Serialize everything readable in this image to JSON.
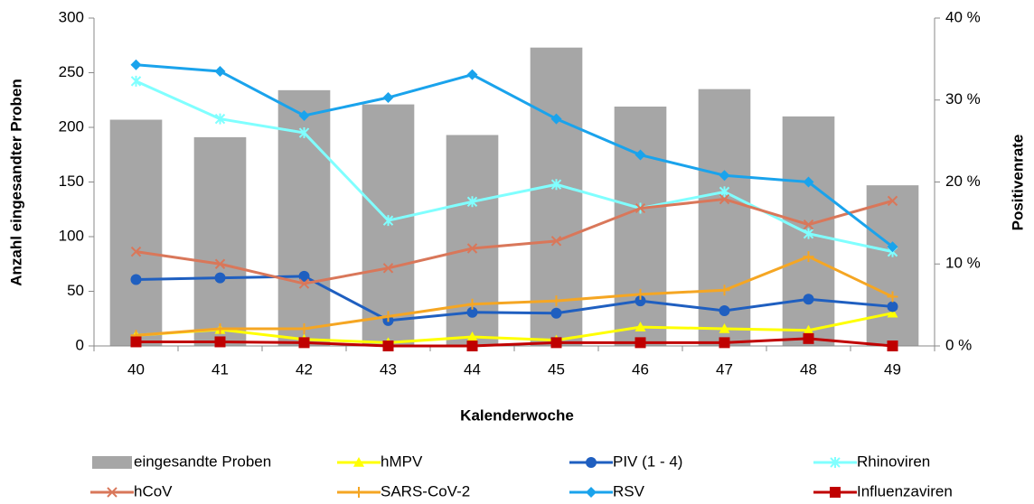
{
  "chart_data": {
    "type": "combo",
    "xlabel": "Kalenderwoche",
    "ylabel": "Anzahl eingesandter Proben",
    "y2label": "Positivenrate",
    "categories": [
      "40",
      "41",
      "42",
      "43",
      "44",
      "45",
      "46",
      "47",
      "48",
      "49"
    ],
    "ylim": [
      0,
      300
    ],
    "yticks": [
      0,
      50,
      100,
      150,
      200,
      250,
      300
    ],
    "y2lim": [
      0,
      40
    ],
    "y2ticks": [
      {
        "value": 0,
        "label": "0 %"
      },
      {
        "value": 10,
        "label": "10 %"
      },
      {
        "value": 20,
        "label": "20 %"
      },
      {
        "value": 30,
        "label": "30 %"
      },
      {
        "value": 40,
        "label": "40 %"
      }
    ],
    "series": [
      {
        "name": "eingesandte Proben",
        "type": "bar",
        "color": "#a6a6a6",
        "values": [
          207,
          191,
          234,
          221,
          193,
          273,
          219,
          235,
          210,
          147
        ]
      },
      {
        "name": "hMPV",
        "type": "line",
        "axis": "y2",
        "marker": "triangle",
        "color": "#ffff00",
        "values": [
          1.3,
          2.0,
          0.8,
          0.4,
          1.1,
          0.7,
          2.3,
          2.1,
          1.9,
          4.0
        ]
      },
      {
        "name": "PIV (1 - 4)",
        "type": "line",
        "axis": "y2",
        "marker": "circle",
        "color": "#1f5fc0",
        "values": [
          8.1,
          8.3,
          8.5,
          3.1,
          4.1,
          4.0,
          5.5,
          4.3,
          5.7,
          4.8
        ]
      },
      {
        "name": "Rhinoviren",
        "type": "line",
        "axis": "y2",
        "marker": "asterisk",
        "color": "#80ffff",
        "values": [
          32.3,
          27.7,
          26.0,
          15.3,
          17.6,
          19.7,
          16.8,
          18.8,
          13.7,
          11.5
        ]
      },
      {
        "name": "hCoV",
        "type": "line",
        "axis": "y2",
        "marker": "x",
        "color": "#d9775a",
        "values": [
          11.5,
          10.0,
          7.6,
          9.5,
          11.9,
          12.8,
          16.8,
          17.9,
          14.8,
          17.7
        ]
      },
      {
        "name": "SARS-CoV-2",
        "type": "line",
        "axis": "y2",
        "marker": "plus",
        "color": "#f5a623",
        "values": [
          1.3,
          2.1,
          2.1,
          3.6,
          5.1,
          5.5,
          6.3,
          6.8,
          10.9,
          6.0
        ]
      },
      {
        "name": "RSV",
        "type": "line",
        "axis": "y2",
        "marker": "diamond",
        "color": "#1aa3ec",
        "values": [
          34.3,
          33.5,
          28.1,
          30.3,
          33.1,
          27.7,
          23.3,
          20.8,
          20.0,
          12.1
        ]
      },
      {
        "name": "Influenzaviren",
        "type": "line",
        "axis": "y2",
        "marker": "square",
        "color": "#c00000",
        "values": [
          0.5,
          0.5,
          0.4,
          0,
          0,
          0.4,
          0.4,
          0.4,
          0.9,
          0
        ]
      }
    ]
  }
}
